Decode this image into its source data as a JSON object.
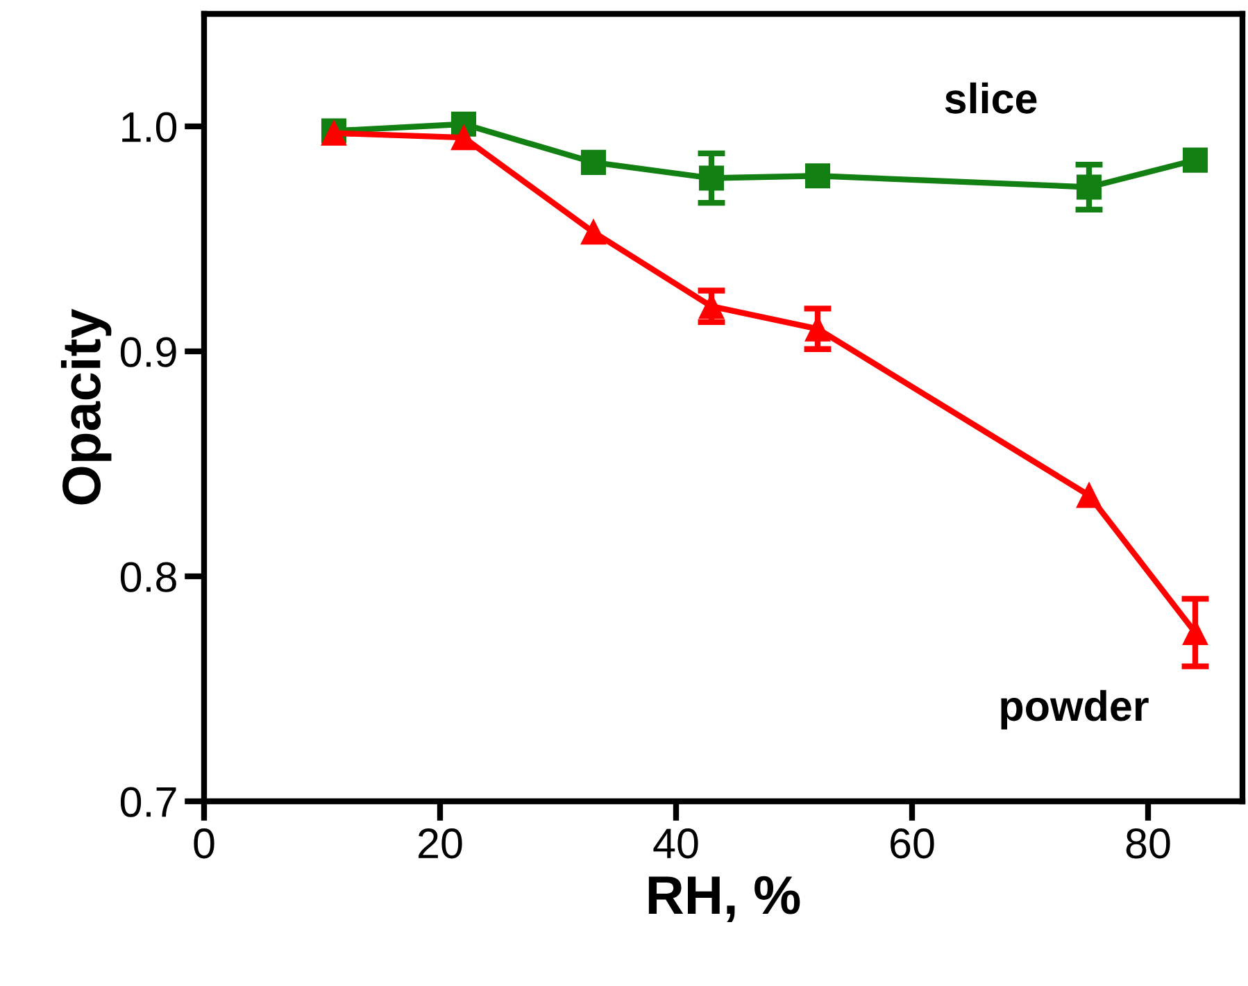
{
  "chart_data": {
    "type": "line",
    "xlabel": "RH, %",
    "ylabel": "Opacity",
    "xlim": [
      0,
      88
    ],
    "ylim": [
      0.7,
      1.05
    ],
    "xticks": [
      0,
      20,
      40,
      60,
      80
    ],
    "yticks": [
      {
        "value": 0.7,
        "label": "0.7"
      },
      {
        "value": 0.8,
        "label": "0.8"
      },
      {
        "value": 0.9,
        "label": "0.9"
      },
      {
        "value": 1.0,
        "label": "1.0"
      }
    ],
    "grid": false,
    "legend": false,
    "x": [
      11,
      22,
      33,
      43,
      52,
      75,
      84
    ],
    "series": [
      {
        "name": "slice",
        "color": "#138013",
        "marker": "square",
        "values": [
          0.998,
          1.001,
          0.984,
          0.977,
          0.978,
          0.973,
          0.985
        ],
        "errors": [
          null,
          null,
          null,
          0.011,
          null,
          0.01,
          null
        ]
      },
      {
        "name": "powder",
        "color": "#ff0000",
        "marker": "triangle",
        "values": [
          0.997,
          0.995,
          0.953,
          0.92,
          0.91,
          0.836,
          0.775
        ],
        "errors": [
          null,
          null,
          null,
          0.007,
          0.009,
          null,
          0.015
        ]
      }
    ]
  }
}
